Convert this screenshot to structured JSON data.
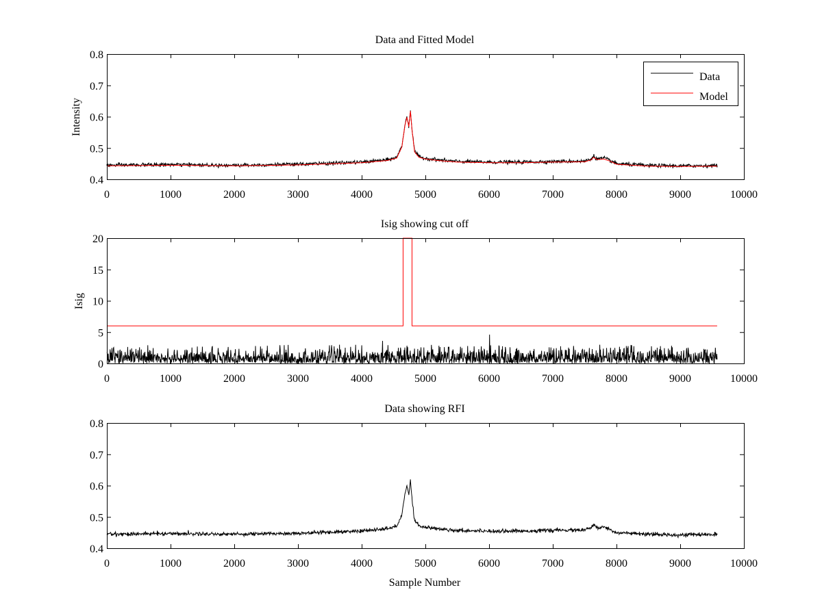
{
  "chart_data": [
    {
      "type": "line",
      "title": "Data and Fitted Model",
      "xlabel": "",
      "ylabel": "Intensity",
      "xlim": [
        0,
        10000
      ],
      "ylim": [
        0.4,
        0.8
      ],
      "xticks": [
        0,
        1000,
        2000,
        3000,
        4000,
        5000,
        6000,
        7000,
        8000,
        9000,
        10000
      ],
      "yticks": [
        0.4,
        0.5,
        0.6,
        0.7,
        0.8
      ],
      "legend": {
        "placement": "top-right",
        "entries": [
          "Data",
          "Model"
        ]
      },
      "series": [
        {
          "name": "Data",
          "color": "#000000",
          "noise_sd": 0.003,
          "x": [
            0,
            1000,
            2000,
            3000,
            4000,
            4400,
            4550,
            4630,
            4680,
            4710,
            4740,
            4765,
            4790,
            4830,
            4900,
            5000,
            5200,
            5500,
            6000,
            6500,
            7000,
            7500,
            7600,
            7640,
            7700,
            7800,
            7900,
            8000,
            8500,
            9000,
            9580
          ],
          "values": [
            0.445,
            0.447,
            0.445,
            0.448,
            0.455,
            0.462,
            0.47,
            0.505,
            0.575,
            0.6,
            0.57,
            0.62,
            0.56,
            0.49,
            0.472,
            0.467,
            0.462,
            0.457,
            0.455,
            0.455,
            0.457,
            0.458,
            0.465,
            0.475,
            0.465,
            0.468,
            0.46,
            0.45,
            0.444,
            0.443,
            0.444
          ]
        },
        {
          "name": "Model",
          "color": "#ff0000",
          "noise_sd": 0,
          "x": [
            0,
            1000,
            2000,
            3000,
            4000,
            4400,
            4550,
            4630,
            4680,
            4710,
            4740,
            4765,
            4790,
            4830,
            4900,
            5000,
            5200,
            5500,
            6000,
            6500,
            7000,
            7500,
            7600,
            7640,
            7700,
            7800,
            7900,
            8000,
            8500,
            9000,
            9580
          ],
          "values": [
            0.443,
            0.445,
            0.443,
            0.446,
            0.453,
            0.46,
            0.468,
            0.503,
            0.573,
            0.598,
            0.568,
            0.618,
            0.558,
            0.488,
            0.47,
            0.465,
            0.46,
            0.455,
            0.453,
            0.453,
            0.455,
            0.456,
            0.462,
            0.47,
            0.463,
            0.465,
            0.458,
            0.448,
            0.442,
            0.441,
            0.442
          ]
        }
      ]
    },
    {
      "type": "line",
      "title": "Isig showing cut off",
      "xlabel": "",
      "ylabel": "Isig",
      "xlim": [
        0,
        10000
      ],
      "ylim": [
        0,
        20
      ],
      "xticks": [
        0,
        1000,
        2000,
        3000,
        4000,
        5000,
        6000,
        7000,
        8000,
        9000,
        10000
      ],
      "yticks": [
        0,
        5,
        10,
        15,
        20
      ],
      "series": [
        {
          "name": "Isig",
          "color": "#000000",
          "kind": "noise",
          "x_range": [
            0,
            9580
          ],
          "typical_max": 3,
          "spikes": [
            {
              "x": 4330,
              "value": 3.6
            },
            {
              "x": 6010,
              "value": 4.6
            }
          ]
        },
        {
          "name": "Cut off",
          "color": "#ff0000",
          "kind": "step",
          "x": [
            0,
            4650,
            4650,
            4790,
            4790,
            9580
          ],
          "values": [
            6,
            6,
            20,
            20,
            6,
            6
          ]
        }
      ]
    },
    {
      "type": "line",
      "title": "Data showing RFI",
      "xlabel": "Sample Number",
      "ylabel": "",
      "xlim": [
        0,
        10000
      ],
      "ylim": [
        0.4,
        0.8
      ],
      "xticks": [
        0,
        1000,
        2000,
        3000,
        4000,
        5000,
        6000,
        7000,
        8000,
        9000,
        10000
      ],
      "yticks": [
        0.4,
        0.5,
        0.6,
        0.7,
        0.8
      ],
      "series": [
        {
          "name": "Data",
          "color": "#000000",
          "noise_sd": 0.003,
          "x": [
            0,
            1000,
            2000,
            3000,
            4000,
            4400,
            4550,
            4630,
            4680,
            4710,
            4740,
            4765,
            4790,
            4830,
            4900,
            5000,
            5200,
            5500,
            6000,
            6500,
            7000,
            7500,
            7600,
            7640,
            7700,
            7800,
            7900,
            8000,
            8500,
            9000,
            9580
          ],
          "values": [
            0.445,
            0.447,
            0.445,
            0.448,
            0.455,
            0.462,
            0.47,
            0.505,
            0.575,
            0.6,
            0.57,
            0.62,
            0.56,
            0.49,
            0.472,
            0.467,
            0.462,
            0.457,
            0.455,
            0.455,
            0.457,
            0.458,
            0.465,
            0.475,
            0.465,
            0.468,
            0.46,
            0.45,
            0.444,
            0.443,
            0.444
          ]
        }
      ]
    }
  ]
}
